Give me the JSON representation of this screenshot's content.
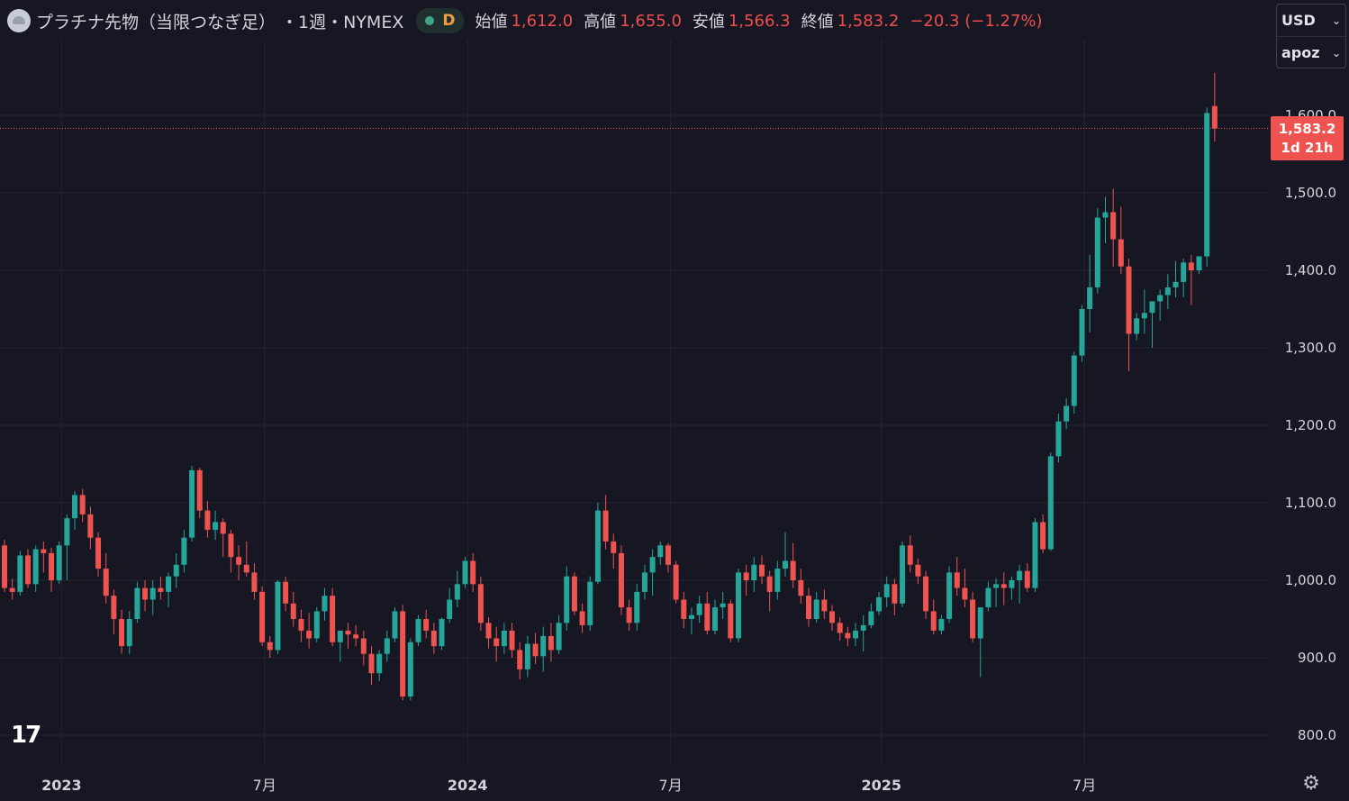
{
  "header": {
    "symbol_title": "プラチナ先物（当限つなぎ足）",
    "interval": "・1週・NYMEX",
    "badge": "D",
    "ohlc": [
      {
        "label": "始値",
        "value": "1,612.0"
      },
      {
        "label": "高値",
        "value": "1,655.0"
      },
      {
        "label": "安値",
        "value": "1,566.3"
      },
      {
        "label": "終値",
        "value": "1,583.2"
      }
    ],
    "change": "−20.3 (−1.27%)"
  },
  "currency_menu": {
    "currency": "USD",
    "scale": "apoz"
  },
  "price_label": {
    "value": "1,583.2",
    "countdown": "1d 21h"
  },
  "colors": {
    "background": "#161722",
    "grid": "#23252f",
    "up": "#26a69a",
    "down": "#ef5350",
    "last_price_line": "#ef5350"
  },
  "icons": {
    "logo": "tradingview-logo",
    "settings": "settings-icon"
  },
  "logo_text": "17",
  "chart_data": {
    "type": "candlestick",
    "title": "プラチナ先物（当限つなぎ足）",
    "interval": "1W",
    "ylim": [
      780,
      1680
    ],
    "y_ticks": [
      {
        "value": 800,
        "label": "800.0"
      },
      {
        "value": 900,
        "label": "900.0"
      },
      {
        "value": 1000,
        "label": "1,000.0"
      },
      {
        "value": 1100,
        "label": "1,100.0"
      },
      {
        "value": 1200,
        "label": "1,200.0"
      },
      {
        "value": 1300,
        "label": "1,300.0"
      },
      {
        "value": 1400,
        "label": "1,400.0"
      },
      {
        "value": 1500,
        "label": "1,500.0"
      },
      {
        "value": 1600,
        "label": "1,600.0"
      }
    ],
    "x_ticks": [
      {
        "index": 8,
        "label": "2023"
      },
      {
        "index": 34,
        "label": "7月"
      },
      {
        "index": 60,
        "label": "2024"
      },
      {
        "index": 86,
        "label": "7月"
      },
      {
        "index": 113,
        "label": "2025"
      },
      {
        "index": 139,
        "label": "7月"
      }
    ],
    "last_price": 1583.2,
    "candles": [
      [
        1045,
        1052,
        985,
        990
      ],
      [
        990,
        1002,
        975,
        985
      ],
      [
        985,
        1038,
        980,
        1032
      ],
      [
        1032,
        1040,
        990,
        995
      ],
      [
        995,
        1045,
        985,
        1040
      ],
      [
        1040,
        1050,
        1010,
        1035
      ],
      [
        1035,
        1042,
        985,
        1000
      ],
      [
        1000,
        1050,
        995,
        1045
      ],
      [
        1045,
        1085,
        1000,
        1080
      ],
      [
        1080,
        1115,
        1065,
        1110
      ],
      [
        1110,
        1118,
        1075,
        1085
      ],
      [
        1085,
        1095,
        1040,
        1055
      ],
      [
        1055,
        1062,
        1005,
        1015
      ],
      [
        1015,
        1035,
        970,
        980
      ],
      [
        980,
        988,
        930,
        950
      ],
      [
        950,
        962,
        905,
        915
      ],
      [
        915,
        960,
        905,
        950
      ],
      [
        950,
        998,
        945,
        990
      ],
      [
        990,
        1000,
        960,
        975
      ],
      [
        975,
        1000,
        955,
        990
      ],
      [
        990,
        1005,
        975,
        985
      ],
      [
        985,
        1010,
        965,
        1005
      ],
      [
        1005,
        1035,
        990,
        1020
      ],
      [
        1020,
        1065,
        1010,
        1055
      ],
      [
        1055,
        1148,
        1050,
        1142
      ],
      [
        1142,
        1145,
        1080,
        1090
      ],
      [
        1090,
        1102,
        1055,
        1065
      ],
      [
        1065,
        1090,
        1052,
        1075
      ],
      [
        1075,
        1080,
        1030,
        1060
      ],
      [
        1060,
        1065,
        1010,
        1030
      ],
      [
        1030,
        1045,
        1000,
        1020
      ],
      [
        1020,
        1050,
        1005,
        1010
      ],
      [
        1010,
        1022,
        975,
        985
      ],
      [
        985,
        992,
        915,
        920
      ],
      [
        920,
        928,
        900,
        910
      ],
      [
        910,
        1000,
        905,
        998
      ],
      [
        998,
        1005,
        960,
        970
      ],
      [
        970,
        985,
        940,
        950
      ],
      [
        950,
        962,
        920,
        935
      ],
      [
        935,
        958,
        912,
        925
      ],
      [
        925,
        965,
        920,
        960
      ],
      [
        960,
        990,
        948,
        980
      ],
      [
        980,
        990,
        915,
        920
      ],
      [
        920,
        930,
        895,
        935
      ],
      [
        935,
        945,
        912,
        930
      ],
      [
        930,
        942,
        915,
        925
      ],
      [
        925,
        935,
        890,
        905
      ],
      [
        905,
        915,
        865,
        880
      ],
      [
        880,
        910,
        870,
        905
      ],
      [
        905,
        935,
        895,
        925
      ],
      [
        925,
        965,
        920,
        960
      ],
      [
        960,
        968,
        845,
        850
      ],
      [
        850,
        925,
        845,
        920
      ],
      [
        920,
        955,
        915,
        950
      ],
      [
        950,
        962,
        925,
        935
      ],
      [
        935,
        945,
        905,
        915
      ],
      [
        915,
        952,
        910,
        950
      ],
      [
        950,
        990,
        945,
        975
      ],
      [
        975,
        1012,
        965,
        995
      ],
      [
        995,
        1030,
        990,
        1025
      ],
      [
        1025,
        1035,
        985,
        995
      ],
      [
        995,
        1005,
        935,
        945
      ],
      [
        945,
        952,
        912,
        925
      ],
      [
        925,
        940,
        895,
        915
      ],
      [
        915,
        945,
        905,
        935
      ],
      [
        935,
        945,
        900,
        910
      ],
      [
        910,
        920,
        872,
        885
      ],
      [
        885,
        928,
        875,
        918
      ],
      [
        918,
        932,
        892,
        902
      ],
      [
        902,
        940,
        882,
        928
      ],
      [
        928,
        945,
        895,
        910
      ],
      [
        910,
        955,
        905,
        945
      ],
      [
        945,
        1018,
        935,
        1005
      ],
      [
        1005,
        1010,
        955,
        960
      ],
      [
        960,
        970,
        932,
        942
      ],
      [
        942,
        1005,
        935,
        998
      ],
      [
        998,
        1100,
        995,
        1090
      ],
      [
        1090,
        1110,
        1040,
        1050
      ],
      [
        1050,
        1060,
        1015,
        1035
      ],
      [
        1035,
        1045,
        955,
        965
      ],
      [
        965,
        975,
        935,
        945
      ],
      [
        945,
        995,
        935,
        985
      ],
      [
        985,
        1020,
        975,
        1010
      ],
      [
        1010,
        1040,
        980,
        1030
      ],
      [
        1030,
        1050,
        1020,
        1045
      ],
      [
        1045,
        1048,
        1010,
        1020
      ],
      [
        1020,
        1025,
        970,
        975
      ],
      [
        975,
        985,
        938,
        950
      ],
      [
        950,
        965,
        930,
        955
      ],
      [
        955,
        980,
        945,
        970
      ],
      [
        970,
        985,
        930,
        935
      ],
      [
        935,
        975,
        930,
        965
      ],
      [
        965,
        985,
        950,
        970
      ],
      [
        970,
        975,
        920,
        925
      ],
      [
        925,
        1015,
        920,
        1010
      ],
      [
        1010,
        1020,
        980,
        1000
      ],
      [
        1000,
        1030,
        985,
        1020
      ],
      [
        1020,
        1032,
        995,
        1005
      ],
      [
        1005,
        1012,
        960,
        985
      ],
      [
        985,
        1025,
        975,
        1015
      ],
      [
        1015,
        1062,
        1005,
        1025
      ],
      [
        1025,
        1048,
        990,
        1000
      ],
      [
        1000,
        1015,
        970,
        980
      ],
      [
        980,
        990,
        940,
        950
      ],
      [
        950,
        985,
        945,
        975
      ],
      [
        975,
        988,
        950,
        960
      ],
      [
        960,
        968,
        935,
        945
      ],
      [
        945,
        952,
        922,
        932
      ],
      [
        932,
        940,
        915,
        925
      ],
      [
        925,
        945,
        915,
        935
      ],
      [
        935,
        955,
        908,
        942
      ],
      [
        942,
        970,
        938,
        960
      ],
      [
        960,
        985,
        955,
        978
      ],
      [
        978,
        1005,
        965,
        995
      ],
      [
        995,
        1002,
        955,
        970
      ],
      [
        970,
        1050,
        965,
        1045
      ],
      [
        1045,
        1058,
        1010,
        1020
      ],
      [
        1020,
        1028,
        995,
        1005
      ],
      [
        1005,
        1012,
        950,
        960
      ],
      [
        960,
        975,
        930,
        935
      ],
      [
        935,
        955,
        930,
        950
      ],
      [
        950,
        1018,
        945,
        1010
      ],
      [
        1010,
        1030,
        980,
        990
      ],
      [
        990,
        1015,
        965,
        975
      ],
      [
        975,
        985,
        920,
        925
      ],
      [
        925,
        962,
        875,
        965
      ],
      [
        965,
        998,
        960,
        990
      ],
      [
        990,
        1002,
        965,
        995
      ],
      [
        995,
        1010,
        968,
        990
      ],
      [
        990,
        1005,
        975,
        1000
      ],
      [
        1000,
        1020,
        970,
        1012
      ],
      [
        1012,
        1022,
        985,
        990
      ],
      [
        990,
        1080,
        985,
        1075
      ],
      [
        1075,
        1085,
        1035,
        1040
      ],
      [
        1040,
        1165,
        1038,
        1160
      ],
      [
        1160,
        1215,
        1152,
        1205
      ],
      [
        1205,
        1235,
        1195,
        1225
      ],
      [
        1225,
        1295,
        1215,
        1290
      ],
      [
        1290,
        1355,
        1282,
        1350
      ],
      [
        1350,
        1420,
        1320,
        1378
      ],
      [
        1378,
        1480,
        1370,
        1468
      ],
      [
        1468,
        1495,
        1435,
        1475
      ],
      [
        1475,
        1505,
        1405,
        1440
      ],
      [
        1440,
        1482,
        1395,
        1405
      ],
      [
        1405,
        1415,
        1270,
        1318
      ],
      [
        1318,
        1345,
        1310,
        1338
      ],
      [
        1338,
        1375,
        1318,
        1345
      ],
      [
        1345,
        1360,
        1300,
        1360
      ],
      [
        1360,
        1375,
        1335,
        1368
      ],
      [
        1368,
        1395,
        1350,
        1378
      ],
      [
        1378,
        1412,
        1365,
        1385
      ],
      [
        1385,
        1415,
        1365,
        1410
      ],
      [
        1410,
        1420,
        1355,
        1400
      ],
      [
        1400,
        1412,
        1395,
        1418
      ],
      [
        1418,
        1610,
        1405,
        1603
      ],
      [
        1612,
        1655,
        1566.3,
        1583.2
      ]
    ]
  }
}
